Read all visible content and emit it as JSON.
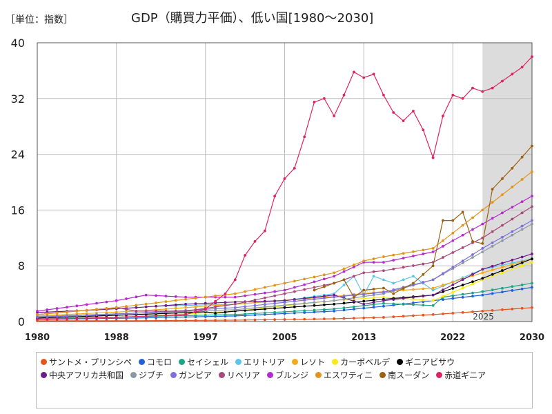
{
  "chart_data": {
    "type": "line",
    "title": "GDP（購買力平価）、低い国[1980～2030]",
    "unit_label": "［単位：指数］",
    "xlabel": "",
    "ylabel": "",
    "xlim": [
      1980,
      2030
    ],
    "ylim": [
      0,
      40
    ],
    "x_ticks": [
      "1980",
      "1988",
      "1997",
      "2005",
      "2013",
      "2022",
      "2030"
    ],
    "y_ticks": [
      "0",
      "8",
      "16",
      "24",
      "32",
      "40"
    ],
    "forecast_start": 2025,
    "forecast_label": "2025",
    "grid": true,
    "legend_position": "bottom",
    "series": [
      {
        "name": "サントメ・プリンシペ",
        "color": "#e8541c",
        "points": [
          [
            1980,
            0.1
          ],
          [
            1990,
            0.12
          ],
          [
            2000,
            0.2
          ],
          [
            2010,
            0.4
          ],
          [
            2015,
            0.6
          ],
          [
            2020,
            1.0
          ],
          [
            2025,
            1.5
          ],
          [
            2030,
            2.0
          ]
        ]
      },
      {
        "name": "コモロ",
        "color": "#1f5fdc",
        "points": [
          [
            1980,
            0.3
          ],
          [
            1990,
            0.5
          ],
          [
            2000,
            0.8
          ],
          [
            2010,
            1.5
          ],
          [
            2015,
            2.2
          ],
          [
            2020,
            3.0
          ],
          [
            2025,
            3.8
          ],
          [
            2030,
            4.9
          ]
        ]
      },
      {
        "name": "セイシェル",
        "color": "#1aa584",
        "points": [
          [
            1980,
            0.4
          ],
          [
            1990,
            0.7
          ],
          [
            2000,
            1.0
          ],
          [
            2010,
            1.8
          ],
          [
            2015,
            2.6
          ],
          [
            2020,
            2.3
          ],
          [
            2021,
            3.5
          ],
          [
            2025,
            4.3
          ],
          [
            2030,
            5.5
          ]
        ]
      },
      {
        "name": "エリトリア",
        "color": "#5bc4ea",
        "points": [
          [
            1992,
            2.2
          ],
          [
            1997,
            2.4
          ],
          [
            2000,
            2.5
          ],
          [
            2005,
            3.0
          ],
          [
            2010,
            4.0
          ],
          [
            2012,
            6.5
          ],
          [
            2013,
            3.8
          ],
          [
            2014,
            6.5
          ],
          [
            2016,
            5.5
          ],
          [
            2018,
            6.5
          ],
          [
            2020,
            4.5
          ],
          [
            2025,
            7.5
          ],
          [
            2030,
            9.0
          ]
        ]
      },
      {
        "name": "レソト",
        "color": "#f4a91c",
        "points": [
          [
            1980,
            0.8
          ],
          [
            1990,
            1.5
          ],
          [
            2000,
            2.5
          ],
          [
            2010,
            3.6
          ],
          [
            2015,
            4.3
          ],
          [
            2020,
            4.8
          ],
          [
            2025,
            7.0
          ],
          [
            2030,
            9.0
          ]
        ]
      },
      {
        "name": "カーボベルデ",
        "color": "#f7ea1c",
        "points": [
          [
            1980,
            0.3
          ],
          [
            1990,
            0.7
          ],
          [
            2000,
            1.5
          ],
          [
            2010,
            3.0
          ],
          [
            2015,
            3.5
          ],
          [
            2020,
            3.0
          ],
          [
            2025,
            6.0
          ],
          [
            2030,
            8.5
          ]
        ]
      },
      {
        "name": "ギニアビサウ",
        "color": "#000000",
        "points": [
          [
            1980,
            0.5
          ],
          [
            1990,
            1.0
          ],
          [
            1997,
            1.4
          ],
          [
            1998,
            1.2
          ],
          [
            2000,
            1.5
          ],
          [
            2005,
            2.0
          ],
          [
            2010,
            2.5
          ],
          [
            2015,
            3.2
          ],
          [
            2020,
            3.8
          ],
          [
            2025,
            6.2
          ],
          [
            2030,
            9.0
          ]
        ]
      },
      {
        "name": "中央アフリカ共和国",
        "color": "#6a1b8a",
        "points": [
          [
            1980,
            1.3
          ],
          [
            1985,
            1.6
          ],
          [
            1990,
            2.0
          ],
          [
            1995,
            2.5
          ],
          [
            2000,
            2.8
          ],
          [
            2005,
            3.0
          ],
          [
            2010,
            3.8
          ],
          [
            2013,
            2.5
          ],
          [
            2015,
            3.0
          ],
          [
            2020,
            3.8
          ],
          [
            2025,
            7.5
          ],
          [
            2030,
            9.7
          ]
        ]
      },
      {
        "name": "ジブチ",
        "color": "#8a98a6",
        "points": [
          [
            1980,
            0.7
          ],
          [
            1990,
            1.2
          ],
          [
            2000,
            1.7
          ],
          [
            2010,
            3.0
          ],
          [
            2015,
            4.0
          ],
          [
            2020,
            6.0
          ],
          [
            2025,
            10.0
          ],
          [
            2030,
            14.0
          ]
        ]
      },
      {
        "name": "ガンビア",
        "color": "#7e6edc",
        "points": [
          [
            1980,
            0.6
          ],
          [
            1990,
            1.2
          ],
          [
            2000,
            2.0
          ],
          [
            2010,
            3.5
          ],
          [
            2015,
            4.2
          ],
          [
            2020,
            6.0
          ],
          [
            2025,
            10.5
          ],
          [
            2030,
            14.5
          ]
        ]
      },
      {
        "name": "リベリア",
        "color": "#a8487a",
        "points": [
          [
            1980,
            1.0
          ],
          [
            1988,
            2.0
          ],
          [
            1990,
            1.5
          ],
          [
            1995,
            1.5
          ],
          [
            2000,
            2.5
          ],
          [
            2005,
            4.0
          ],
          [
            2010,
            5.5
          ],
          [
            2013,
            7.0
          ],
          [
            2015,
            7.3
          ],
          [
            2020,
            8.5
          ],
          [
            2025,
            12.0
          ],
          [
            2030,
            16.5
          ]
        ]
      },
      {
        "name": "ブルンジ",
        "color": "#b52ad0",
        "points": [
          [
            1980,
            1.5
          ],
          [
            1988,
            3.0
          ],
          [
            1991,
            3.8
          ],
          [
            1995,
            3.5
          ],
          [
            2000,
            3.5
          ],
          [
            2005,
            4.5
          ],
          [
            2010,
            6.5
          ],
          [
            2013,
            8.5
          ],
          [
            2015,
            8.5
          ],
          [
            2020,
            10.0
          ],
          [
            2025,
            14.0
          ],
          [
            2030,
            18.0
          ]
        ]
      },
      {
        "name": "エスワティニ",
        "color": "#e2931b",
        "points": [
          [
            1980,
            1.0
          ],
          [
            1988,
            2.0
          ],
          [
            1995,
            3.2
          ],
          [
            2000,
            4.0
          ],
          [
            2005,
            5.5
          ],
          [
            2010,
            7.0
          ],
          [
            2013,
            8.7
          ],
          [
            2015,
            9.3
          ],
          [
            2020,
            10.5
          ],
          [
            2025,
            16.0
          ],
          [
            2030,
            21.5
          ]
        ]
      },
      {
        "name": "南スーダン",
        "color": "#9b6010",
        "points": [
          [
            2008,
            4.5
          ],
          [
            2011,
            6.0
          ],
          [
            2012,
            3.5
          ],
          [
            2013,
            4.5
          ],
          [
            2015,
            4.8
          ],
          [
            2016,
            4.0
          ],
          [
            2018,
            5.5
          ],
          [
            2020,
            8.0
          ],
          [
            2021,
            14.5
          ],
          [
            2022,
            14.5
          ],
          [
            2023,
            15.7
          ],
          [
            2024,
            11.5
          ],
          [
            2025,
            11.2
          ],
          [
            2026,
            19.0
          ],
          [
            2028,
            22.0
          ],
          [
            2030,
            25.2
          ]
        ]
      },
      {
        "name": "赤道ギニア",
        "color": "#e02264",
        "points": [
          [
            1980,
            0.3
          ],
          [
            1988,
            0.6
          ],
          [
            1995,
            1.0
          ],
          [
            1997,
            1.8
          ],
          [
            1999,
            4.0
          ],
          [
            2000,
            6.0
          ],
          [
            2001,
            9.5
          ],
          [
            2002,
            11.5
          ],
          [
            2003,
            13.0
          ],
          [
            2004,
            18.0
          ],
          [
            2005,
            20.5
          ],
          [
            2006,
            22.0
          ],
          [
            2007,
            26.5
          ],
          [
            2008,
            31.5
          ],
          [
            2009,
            32.0
          ],
          [
            2010,
            29.5
          ],
          [
            2011,
            32.5
          ],
          [
            2012,
            35.8
          ],
          [
            2013,
            35.0
          ],
          [
            2014,
            35.5
          ],
          [
            2015,
            32.5
          ],
          [
            2016,
            30.0
          ],
          [
            2017,
            28.8
          ],
          [
            2018,
            30.2
          ],
          [
            2019,
            27.5
          ],
          [
            2020,
            23.5
          ],
          [
            2021,
            29.5
          ],
          [
            2022,
            32.5
          ],
          [
            2023,
            32.0
          ],
          [
            2024,
            33.5
          ],
          [
            2025,
            33.0
          ],
          [
            2026,
            33.5
          ],
          [
            2027,
            34.5
          ],
          [
            2028,
            35.5
          ],
          [
            2029,
            36.5
          ],
          [
            2030,
            38.0
          ]
        ]
      }
    ]
  }
}
